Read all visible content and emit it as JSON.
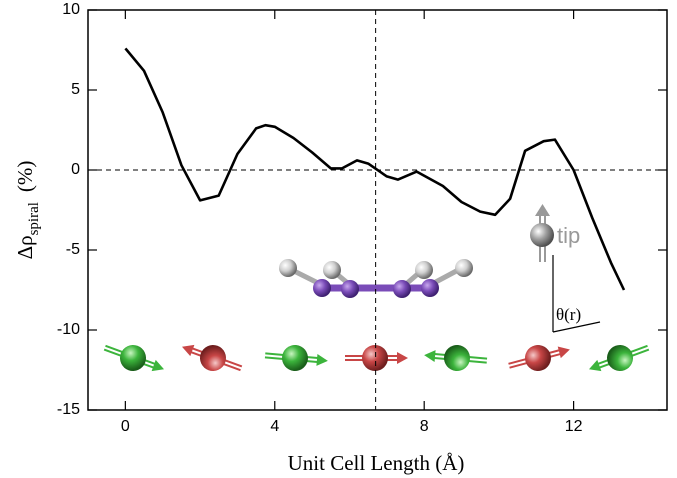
{
  "chart_data": {
    "type": "line",
    "xlabel": "Unit Cell Length (Å)",
    "ylabel": {
      "symbol": "Δρ",
      "subscript": "spiral",
      "unit": "(%)"
    },
    "annotations": {
      "tip": "tip",
      "angle": "θ(r)"
    },
    "x": [
      0,
      0.5,
      1,
      1.5,
      2,
      2.5,
      3,
      3.5,
      3.75,
      4,
      4.5,
      5,
      5.5,
      5.8,
      6.2,
      6.5,
      7,
      7.3,
      7.8,
      8.5,
      9,
      9.5,
      9.9,
      10.3,
      10.7,
      11.2,
      11.5,
      12,
      12.5,
      13,
      13.35
    ],
    "values": [
      7.6,
      6.2,
      3.6,
      0.3,
      -1.9,
      -1.6,
      1.0,
      2.6,
      2.8,
      2.7,
      2.0,
      1.1,
      0.1,
      0.1,
      0.6,
      0.4,
      -0.4,
      -0.6,
      -0.1,
      -1.0,
      -2.0,
      -2.6,
      -2.8,
      -1.8,
      1.2,
      1.8,
      1.9,
      0,
      -3.0,
      -5.8,
      -7.5
    ],
    "color": "#000000",
    "xlim": [
      -1,
      14.5
    ],
    "ylim": [
      -15,
      10
    ],
    "xticks": [
      0,
      4,
      8,
      12
    ],
    "yticks": [
      -15,
      -10,
      -5,
      0,
      5,
      10
    ],
    "hline": 0,
    "vline": 6.7
  }
}
